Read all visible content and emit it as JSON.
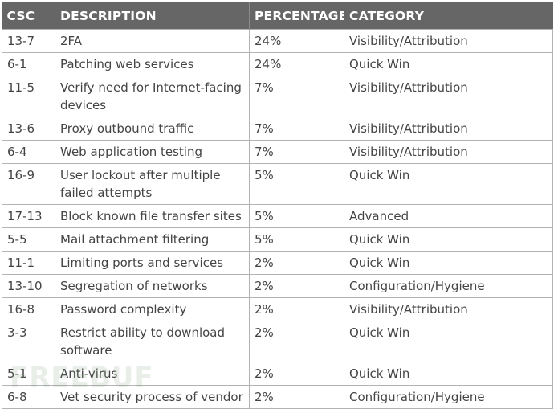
{
  "table": {
    "headers": [
      "CSC",
      "DESCRIPTION",
      "PERCENTAGE",
      "CATEGORY"
    ],
    "rows": [
      {
        "csc": "13-7",
        "description": "2FA",
        "percentage": "24%",
        "category": "Visibility/Attribution"
      },
      {
        "csc": "6-1",
        "description": "Patching web services",
        "percentage": "24%",
        "category": "Quick Win"
      },
      {
        "csc": "11-5",
        "description": "Verify need for Internet-facing devices",
        "percentage": "7%",
        "category": "Visibility/Attribution"
      },
      {
        "csc": "13-6",
        "description": "Proxy outbound traffic",
        "percentage": "7%",
        "category": "Visibility/Attribution"
      },
      {
        "csc": "6-4",
        "description": "Web application testing",
        "percentage": "7%",
        "category": "Visibility/Attribution"
      },
      {
        "csc": "16-9",
        "description": "User lockout after multiple failed attempts",
        "percentage": "5%",
        "category": "Quick Win"
      },
      {
        "csc": "17-13",
        "description": "Block known file transfer sites",
        "percentage": "5%",
        "category": "Advanced"
      },
      {
        "csc": "5-5",
        "description": "Mail attachment filtering",
        "percentage": "5%",
        "category": "Quick Win"
      },
      {
        "csc": "11-1",
        "description": "Limiting ports and services",
        "percentage": "2%",
        "category": "Quick Win"
      },
      {
        "csc": "13-10",
        "description": "Segregation of networks",
        "percentage": "2%",
        "category": "Configuration/Hygiene"
      },
      {
        "csc": "16-8",
        "description": "Password complexity",
        "percentage": "2%",
        "category": "Visibility/Attribution"
      },
      {
        "csc": "3-3",
        "description": "Restrict ability to download software",
        "percentage": "2%",
        "category": "Quick Win"
      },
      {
        "csc": "5-1",
        "description": "Anti-virus",
        "percentage": "2%",
        "category": "Quick Win"
      },
      {
        "csc": "6-8",
        "description": "Vet security process of vendor",
        "percentage": "2%",
        "category": "Configuration/Hygiene"
      }
    ]
  },
  "watermark": {
    "text": "FREEBUF"
  }
}
